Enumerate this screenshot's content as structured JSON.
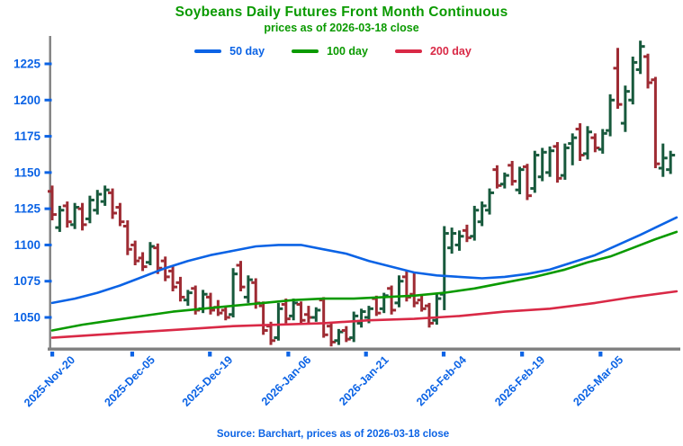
{
  "colors": {
    "blue": "#0B63E5",
    "green": "#0A9A00",
    "crimson": "#D92946",
    "axis_gray": "#808080",
    "up_bar": "#17593C",
    "down_bar": "#9E2B33"
  },
  "footer": {
    "source": "Source: Barchart, prices as of 2026-03-18 close"
  },
  "chart_data": {
    "type": "bar",
    "style": "ohlc-open-close-tick-bars",
    "title": "Soybeans Daily Futures Front Month Continuous",
    "subtitle": "prices as of 2026-03-18 close",
    "ylabel": "",
    "xlabel": "",
    "grid": "off",
    "legend_position": "top-center",
    "y_axis": {
      "ticks": [
        1225,
        1200,
        1175,
        1150,
        1125,
        1100,
        1075,
        1050
      ],
      "range": [
        1029,
        1244
      ]
    },
    "x_axis": {
      "tick_labels": [
        "2025-Nov-20",
        "2025-Dec-05",
        "2025-Dec-19",
        "2026-Jan-06",
        "2026-Jan-21",
        "2026-Feb-04",
        "2026-Feb-19",
        "2026-Mar-05"
      ],
      "tick_indices": [
        0,
        10.6,
        20.9,
        31.3,
        41.6,
        51.9,
        62.3,
        72.7
      ],
      "last_date": "2026-03-18"
    },
    "legend": [
      {
        "id": "50-day",
        "name": "50 day",
        "color": "#0B63E5"
      },
      {
        "id": "100-day",
        "name": "100 day",
        "color": "#0A9A00"
      },
      {
        "id": "200-day",
        "name": "200 day",
        "color": "#D92946"
      }
    ],
    "up_color": "#17593C",
    "down_color": "#9E2B33",
    "axis_color": "#808080",
    "label_color": "#0B63E5",
    "ohlc_columns": [
      "open",
      "high",
      "low",
      "close"
    ],
    "ohlc": [
      [
        1137,
        1141,
        1117,
        1121
      ],
      [
        1112,
        1127,
        1109,
        1124
      ],
      [
        1127,
        1130,
        1112,
        1116
      ],
      [
        1114,
        1129,
        1111,
        1126
      ],
      [
        1125,
        1129,
        1110,
        1114
      ],
      [
        1118,
        1134,
        1115,
        1131
      ],
      [
        1124,
        1138,
        1121,
        1135
      ],
      [
        1130,
        1141,
        1127,
        1138
      ],
      [
        1136,
        1139,
        1118,
        1122
      ],
      [
        1126,
        1129,
        1113,
        1116
      ],
      [
        1113,
        1117,
        1093,
        1097
      ],
      [
        1100,
        1103,
        1086,
        1089
      ],
      [
        1091,
        1095,
        1082,
        1085
      ],
      [
        1088,
        1102,
        1086,
        1099
      ],
      [
        1098,
        1101,
        1080,
        1084
      ],
      [
        1089,
        1092,
        1075,
        1078
      ],
      [
        1082,
        1086,
        1068,
        1071
      ],
      [
        1074,
        1078,
        1061,
        1064
      ],
      [
        1062,
        1069,
        1058,
        1067
      ],
      [
        1070,
        1072,
        1052,
        1055
      ],
      [
        1056,
        1069,
        1053,
        1066
      ],
      [
        1064,
        1067,
        1052,
        1055
      ],
      [
        1057,
        1062,
        1051,
        1053
      ],
      [
        1055,
        1058,
        1048,
        1050
      ],
      [
        1052,
        1084,
        1050,
        1080
      ],
      [
        1086,
        1089,
        1068,
        1071
      ],
      [
        1064,
        1079,
        1060,
        1076
      ],
      [
        1074,
        1077,
        1056,
        1060
      ],
      [
        1058,
        1061,
        1038,
        1041
      ],
      [
        1044,
        1047,
        1031,
        1034
      ],
      [
        1036,
        1060,
        1034,
        1056
      ],
      [
        1059,
        1063,
        1046,
        1049
      ],
      [
        1051,
        1063,
        1048,
        1060
      ],
      [
        1059,
        1061,
        1046,
        1048
      ],
      [
        1052,
        1058,
        1046,
        1050
      ],
      [
        1050,
        1057,
        1047,
        1055
      ],
      [
        1062,
        1064,
        1036,
        1038
      ],
      [
        1044,
        1047,
        1030,
        1033
      ],
      [
        1034,
        1042,
        1031,
        1040
      ],
      [
        1041,
        1044,
        1033,
        1035
      ],
      [
        1036,
        1054,
        1033,
        1051
      ],
      [
        1046,
        1056,
        1043,
        1054
      ],
      [
        1050,
        1058,
        1046,
        1056
      ],
      [
        1063,
        1065,
        1051,
        1053
      ],
      [
        1056,
        1067,
        1053,
        1065
      ],
      [
        1070,
        1072,
        1052,
        1055
      ],
      [
        1060,
        1079,
        1057,
        1075
      ],
      [
        1078,
        1082,
        1061,
        1064
      ],
      [
        1066,
        1081,
        1057,
        1060
      ],
      [
        1062,
        1066,
        1054,
        1056
      ],
      [
        1058,
        1060,
        1043,
        1046
      ],
      [
        1048,
        1066,
        1045,
        1063
      ],
      [
        1066,
        1113,
        1055,
        1108
      ],
      [
        1098,
        1112,
        1094,
        1108
      ],
      [
        1100,
        1110,
        1096,
        1106
      ],
      [
        1110,
        1114,
        1102,
        1105
      ],
      [
        1106,
        1127,
        1103,
        1124
      ],
      [
        1116,
        1130,
        1113,
        1127
      ],
      [
        1124,
        1139,
        1121,
        1136
      ],
      [
        1152,
        1155,
        1139,
        1141
      ],
      [
        1142,
        1150,
        1139,
        1148
      ],
      [
        1155,
        1158,
        1141,
        1144
      ],
      [
        1138,
        1154,
        1135,
        1152
      ],
      [
        1154,
        1156,
        1131,
        1134
      ],
      [
        1139,
        1165,
        1136,
        1162
      ],
      [
        1147,
        1167,
        1144,
        1164
      ],
      [
        1150,
        1168,
        1147,
        1165
      ],
      [
        1168,
        1171,
        1143,
        1146
      ],
      [
        1148,
        1170,
        1145,
        1167
      ],
      [
        1170,
        1177,
        1155,
        1174
      ],
      [
        1180,
        1184,
        1158,
        1162
      ],
      [
        1163,
        1182,
        1159,
        1178
      ],
      [
        1174,
        1177,
        1164,
        1167
      ],
      [
        1166,
        1180,
        1163,
        1177
      ],
      [
        1179,
        1204,
        1175,
        1200
      ],
      [
        1222,
        1236,
        1194,
        1197
      ],
      [
        1184,
        1210,
        1178,
        1206
      ],
      [
        1200,
        1230,
        1197,
        1226
      ],
      [
        1221,
        1241,
        1218,
        1237
      ],
      [
        1230,
        1232,
        1208,
        1212
      ],
      [
        1214,
        1216,
        1153,
        1156
      ],
      [
        1153,
        1170,
        1147,
        1160
      ],
      [
        1152,
        1165,
        1149,
        1162
      ]
    ],
    "moving_averages": [
      {
        "id": "50-day",
        "name": "50 day",
        "color": "#0B63E5",
        "points": [
          [
            0,
            1060
          ],
          [
            3,
            1063
          ],
          [
            6,
            1067
          ],
          [
            9,
            1072
          ],
          [
            12,
            1078
          ],
          [
            15,
            1084
          ],
          [
            18,
            1089
          ],
          [
            21,
            1093
          ],
          [
            24,
            1096
          ],
          [
            27,
            1099
          ],
          [
            30,
            1100
          ],
          [
            33,
            1100
          ],
          [
            36,
            1097
          ],
          [
            39,
            1094
          ],
          [
            42,
            1089
          ],
          [
            45,
            1085
          ],
          [
            48,
            1081
          ],
          [
            51,
            1079
          ],
          [
            54,
            1078
          ],
          [
            57,
            1077
          ],
          [
            60,
            1078
          ],
          [
            63,
            1080
          ],
          [
            66,
            1083
          ],
          [
            69,
            1088
          ],
          [
            72,
            1093
          ],
          [
            75,
            1100
          ],
          [
            78,
            1107
          ],
          [
            80,
            1112
          ],
          [
            82.8,
            1119
          ]
        ]
      },
      {
        "id": "100-day",
        "name": "100 day",
        "color": "#0A9A00",
        "points": [
          [
            0,
            1041
          ],
          [
            4,
            1045
          ],
          [
            8,
            1048
          ],
          [
            12,
            1051
          ],
          [
            16,
            1054
          ],
          [
            20,
            1056
          ],
          [
            24,
            1058
          ],
          [
            28,
            1060
          ],
          [
            32,
            1062
          ],
          [
            36,
            1063
          ],
          [
            40,
            1063
          ],
          [
            44,
            1064
          ],
          [
            48,
            1065
          ],
          [
            52,
            1067
          ],
          [
            56,
            1070
          ],
          [
            60,
            1074
          ],
          [
            64,
            1078
          ],
          [
            68,
            1083
          ],
          [
            71,
            1088
          ],
          [
            74,
            1092
          ],
          [
            77,
            1098
          ],
          [
            80,
            1104
          ],
          [
            82.8,
            1109
          ]
        ]
      },
      {
        "id": "200-day",
        "name": "200 day",
        "color": "#D92946",
        "points": [
          [
            0,
            1036
          ],
          [
            6,
            1038
          ],
          [
            12,
            1040
          ],
          [
            18,
            1042
          ],
          [
            24,
            1044
          ],
          [
            30,
            1045
          ],
          [
            36,
            1046
          ],
          [
            42,
            1048
          ],
          [
            48,
            1049
          ],
          [
            54,
            1051
          ],
          [
            60,
            1054
          ],
          [
            66,
            1056
          ],
          [
            72,
            1060
          ],
          [
            77,
            1064
          ],
          [
            82.8,
            1068
          ]
        ]
      }
    ]
  }
}
